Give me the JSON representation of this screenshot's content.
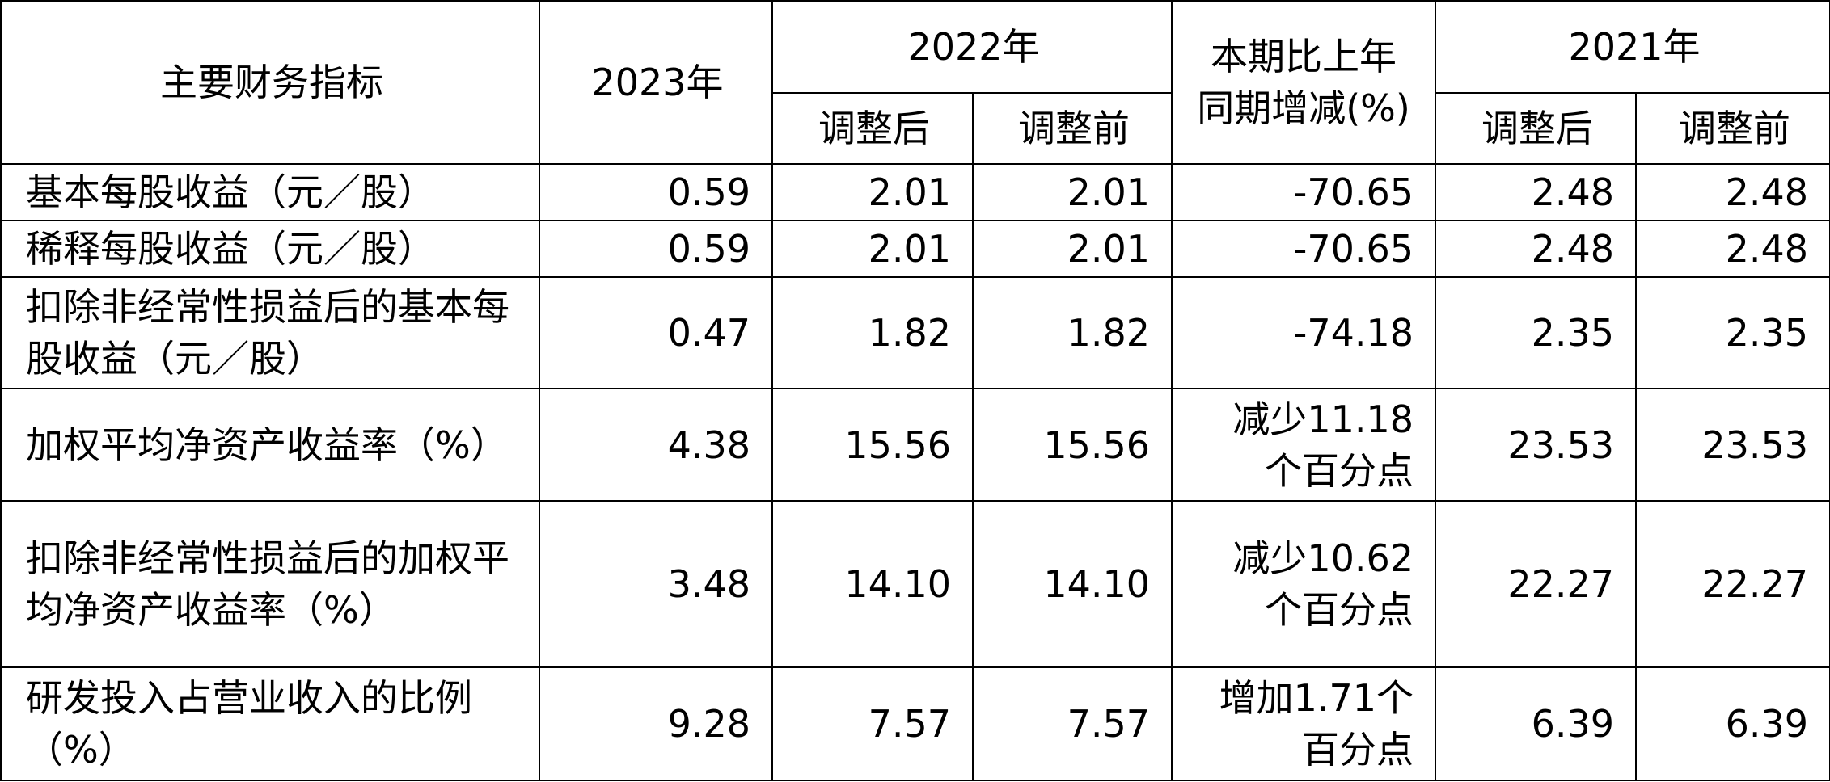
{
  "headers": {
    "indicator": "主要财务指标",
    "y2023": "2023年",
    "y2022": "2022年",
    "change": "本期比上年同期增减(%)",
    "y2021": "2021年",
    "adjusted_after": "调整后",
    "adjusted_before": "调整前"
  },
  "rows": [
    {
      "label": "基本每股收益（元／股）",
      "y2023": "0.59",
      "y2022_after": "2.01",
      "y2022_before": "2.01",
      "change_line1": "-70.65",
      "change_line2": "",
      "y2021_after": "2.48",
      "y2021_before": "2.48"
    },
    {
      "label": "稀释每股收益（元／股）",
      "y2023": "0.59",
      "y2022_after": "2.01",
      "y2022_before": "2.01",
      "change_line1": "-70.65",
      "change_line2": "",
      "y2021_after": "2.48",
      "y2021_before": "2.48"
    },
    {
      "label": "扣除非经常性损益后的基本每股收益（元／股）",
      "y2023": "0.47",
      "y2022_after": "1.82",
      "y2022_before": "1.82",
      "change_line1": "-74.18",
      "change_line2": "",
      "y2021_after": "2.35",
      "y2021_before": "2.35"
    },
    {
      "label": "加权平均净资产收益率（%）",
      "y2023": "4.38",
      "y2022_after": "15.56",
      "y2022_before": "15.56",
      "change_line1": "减少11.18",
      "change_line2": "个百分点",
      "y2021_after": "23.53",
      "y2021_before": "23.53"
    },
    {
      "label": "扣除非经常性损益后的加权平均净资产收益率（%）",
      "y2023": "3.48",
      "y2022_after": "14.10",
      "y2022_before": "14.10",
      "change_line1": "减少10.62",
      "change_line2": "个百分点",
      "y2021_after": "22.27",
      "y2021_before": "22.27"
    },
    {
      "label": "研发投入占营业收入的比例（%）",
      "y2023": "9.28",
      "y2022_after": "7.57",
      "y2022_before": "7.57",
      "change_line1": "增加1.71个",
      "change_line2": "百分点",
      "y2021_after": "6.39",
      "y2021_before": "6.39"
    }
  ]
}
